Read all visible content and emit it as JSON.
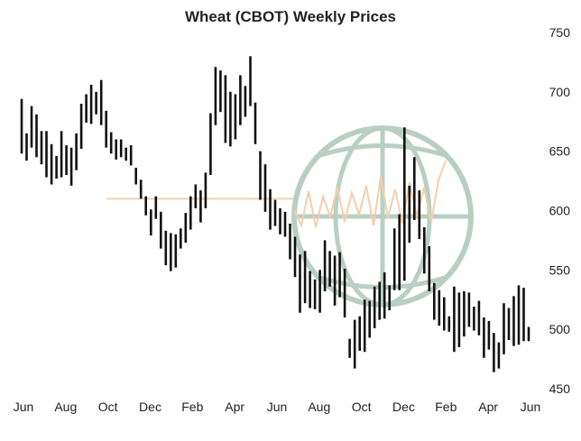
{
  "chart_data": {
    "type": "bar",
    "style": "ohlc-high-low",
    "title": "Wheat (CBOT) Weekly Prices",
    "xlabel": "",
    "ylabel": "",
    "ylim": [
      450,
      750
    ],
    "y_ticks": [
      "450",
      "500",
      "550",
      "600",
      "650",
      "700",
      "750"
    ],
    "y_axis_side": "right",
    "x_ticks": [
      "Jun",
      "Aug",
      "Oct",
      "Dec",
      "Feb",
      "Apr",
      "Jun",
      "Aug",
      "Oct",
      "Dec",
      "Feb",
      "Apr",
      "Jun"
    ],
    "grid": false,
    "bar_color": "#111111",
    "watermark_color": "#b9cfc3",
    "watermark_line_color": "#f3cfae",
    "watermark_icon": "globe-logo-icon",
    "watermark_flat_level": 610,
    "bars": [
      [
        694,
        648
      ],
      [
        665,
        642
      ],
      [
        688,
        653
      ],
      [
        681,
        645
      ],
      [
        667,
        639
      ],
      [
        667,
        628
      ],
      [
        656,
        622
      ],
      [
        646,
        627
      ],
      [
        667,
        628
      ],
      [
        655,
        630
      ],
      [
        653,
        621
      ],
      [
        665,
        634
      ],
      [
        690,
        652
      ],
      [
        698,
        674
      ],
      [
        706,
        673
      ],
      [
        700,
        681
      ],
      [
        710,
        672
      ],
      [
        684,
        653
      ],
      [
        666,
        648
      ],
      [
        660,
        643
      ],
      [
        660,
        645
      ],
      [
        653,
        642
      ],
      [
        655,
        638
      ],
      [
        636,
        622
      ],
      [
        626,
        610
      ],
      [
        612,
        596
      ],
      [
        601,
        579
      ],
      [
        612,
        593
      ],
      [
        599,
        568
      ],
      [
        583,
        554
      ],
      [
        581,
        549
      ],
      [
        580,
        552
      ],
      [
        585,
        568
      ],
      [
        598,
        573
      ],
      [
        612,
        584
      ],
      [
        622,
        602
      ],
      [
        617,
        590
      ],
      [
        632,
        602
      ],
      [
        682,
        630
      ],
      [
        721,
        672
      ],
      [
        718,
        683
      ],
      [
        714,
        657
      ],
      [
        700,
        654
      ],
      [
        698,
        660
      ],
      [
        714,
        672
      ],
      [
        705,
        679
      ],
      [
        730,
        688
      ],
      [
        691,
        656
      ],
      [
        650,
        609
      ],
      [
        639,
        599
      ],
      [
        618,
        584
      ],
      [
        609,
        587
      ],
      [
        602,
        580
      ],
      [
        599,
        578
      ],
      [
        589,
        559
      ],
      [
        578,
        544
      ],
      [
        563,
        514
      ],
      [
        566,
        522
      ],
      [
        549,
        518
      ],
      [
        542,
        517
      ],
      [
        550,
        514
      ],
      [
        575,
        532
      ],
      [
        566,
        536
      ],
      [
        562,
        520
      ],
      [
        565,
        527
      ],
      [
        551,
        510
      ],
      [
        492,
        476
      ],
      [
        508,
        467
      ],
      [
        511,
        482
      ],
      [
        525,
        481
      ],
      [
        524,
        493
      ],
      [
        536,
        501
      ],
      [
        540,
        508
      ],
      [
        548,
        509
      ],
      [
        537,
        516
      ],
      [
        585,
        533
      ],
      [
        597,
        533
      ],
      [
        670,
        541
      ],
      [
        621,
        573
      ],
      [
        645,
        592
      ],
      [
        617,
        576
      ],
      [
        586,
        547
      ],
      [
        570,
        532
      ],
      [
        539,
        508
      ],
      [
        533,
        503
      ],
      [
        527,
        499
      ],
      [
        511,
        498
      ],
      [
        536,
        481
      ],
      [
        531,
        485
      ],
      [
        532,
        494
      ],
      [
        531,
        502
      ],
      [
        519,
        499
      ],
      [
        524,
        495
      ],
      [
        510,
        476
      ],
      [
        507,
        483
      ],
      [
        497,
        464
      ],
      [
        489,
        467
      ],
      [
        522,
        479
      ],
      [
        518,
        491
      ],
      [
        528,
        486
      ],
      [
        537,
        487
      ],
      [
        535,
        490
      ],
      [
        502,
        490
      ]
    ]
  }
}
